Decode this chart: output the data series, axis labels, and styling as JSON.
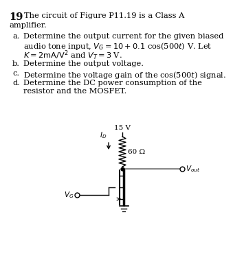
{
  "bg_color": "#ffffff",
  "text_color": "#000000",
  "title_num": "19",
  "title_rest": "  The circuit of Figure P11.19 is a Class A",
  "title_line2": "amplifier.",
  "item_a_label": "a.",
  "item_a_line1": "Determine the output current for the given biased",
  "item_a_line2": "audio tone input, $V_G = 10 + 0.1$ cos(500$t$) V. Let",
  "item_a_line3": "$K = 2\\mathrm{mA/V^2}$ and $V_T = 3$ V.",
  "item_b_label": "b.",
  "item_b_text": "Determine the output voltage.",
  "item_c_label": "c.",
  "item_c_text": "Determine the voltage gain of the cos(500$t$) signal.",
  "item_d_label": "d.",
  "item_d_line1": "Determine the DC power consumption of the",
  "item_d_line2": "resistor and the MOSFET.",
  "vdd_label": "15 V",
  "res_label": "60 Ω",
  "id_label": "$I_D$",
  "vg_label": "$V_G$",
  "vout_label": "$V_{out}$"
}
